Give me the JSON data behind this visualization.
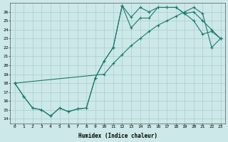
{
  "xlabel": "Humidex (Indice chaleur)",
  "bg_color": "#cce8e8",
  "line_color": "#1a7a6e",
  "grid_color": "#aacece",
  "xlim": [
    -0.5,
    23.5
  ],
  "ylim": [
    13.5,
    27.0
  ],
  "xticks": [
    0,
    1,
    2,
    3,
    4,
    5,
    6,
    7,
    8,
    9,
    10,
    11,
    12,
    13,
    14,
    15,
    16,
    17,
    18,
    19,
    20,
    21,
    22,
    23
  ],
  "yticks": [
    14,
    15,
    16,
    17,
    18,
    19,
    20,
    21,
    22,
    23,
    24,
    25,
    26
  ],
  "line1_x": [
    0,
    1,
    2,
    3,
    4,
    5,
    6,
    7,
    8,
    9,
    10,
    11,
    12,
    13,
    14,
    15,
    16,
    17,
    18,
    19,
    20,
    21,
    22,
    23
  ],
  "line1_y": [
    18,
    16.5,
    15.2,
    15.0,
    14.3,
    15.2,
    14.8,
    15.1,
    15.2,
    18.6,
    20.5,
    22.0,
    26.7,
    25.4,
    26.5,
    26.0,
    26.5,
    26.5,
    26.5,
    25.8,
    26.0,
    25.0,
    24.0,
    23.0
  ],
  "line2_x": [
    0,
    1,
    2,
    3,
    4,
    5,
    6,
    7,
    8,
    9,
    10,
    11,
    12,
    13,
    14,
    15,
    16,
    17,
    18,
    19,
    20,
    21,
    22,
    23
  ],
  "line2_y": [
    18,
    16.5,
    15.2,
    15.0,
    14.3,
    15.2,
    14.8,
    15.1,
    15.2,
    18.6,
    20.5,
    22.0,
    26.7,
    24.2,
    25.3,
    25.3,
    26.5,
    26.5,
    26.5,
    25.8,
    25.0,
    23.5,
    23.8,
    23.0
  ],
  "line3_x": [
    0,
    10,
    11,
    12,
    13,
    14,
    15,
    16,
    17,
    18,
    19,
    20,
    21,
    22,
    23
  ],
  "line3_y": [
    18,
    19.0,
    20.2,
    21.2,
    22.2,
    23.0,
    23.8,
    24.5,
    25.0,
    25.5,
    26.0,
    26.5,
    25.8,
    22.0,
    23.0
  ]
}
